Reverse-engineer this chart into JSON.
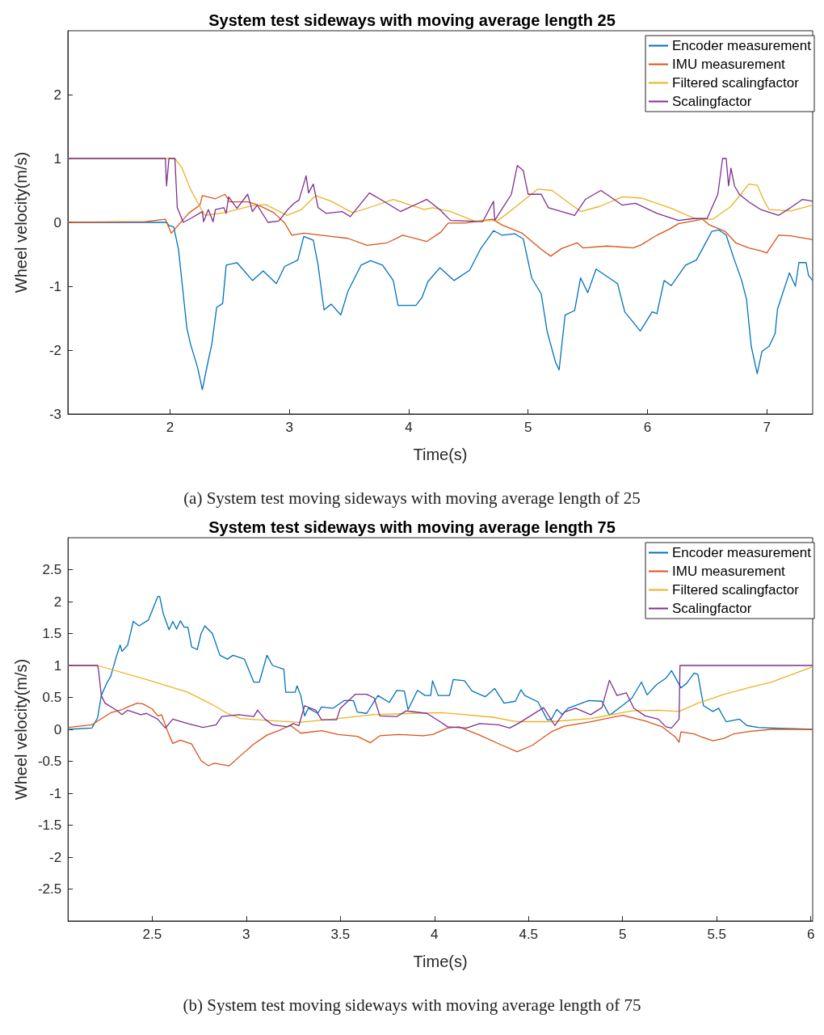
{
  "chart_data": [
    {
      "type": "line",
      "title": "System test sideways with moving average length 25",
      "xlabel": "Time(s)",
      "ylabel": "Wheel velocity(m/s)",
      "xlim": [
        1.143,
        7.385
      ],
      "ylim": [
        -3,
        3
      ],
      "xticks": [
        2,
        3,
        4,
        5,
        6,
        7
      ],
      "yticks": [
        -3,
        -2,
        -1,
        0,
        1,
        2
      ],
      "legend": "top right",
      "annotations": [
        "(a) System test moving sideways with moving average length of 25"
      ],
      "series": [
        {
          "name": "Encoder measurement",
          "color": "#0072bd",
          "x": [
            1.143,
            1.97,
            1.99,
            2.03,
            2.07,
            2.11,
            2.14,
            2.17,
            2.23,
            2.27,
            2.31,
            2.35,
            2.39,
            2.44,
            2.47,
            2.56,
            2.69,
            2.78,
            2.89,
            2.96,
            3.07,
            3.12,
            3.2,
            3.24,
            3.29,
            3.35,
            3.43,
            3.49,
            3.6,
            3.68,
            3.78,
            3.87,
            3.91,
            4.06,
            4.11,
            4.16,
            4.26,
            4.38,
            4.51,
            4.6,
            4.71,
            4.78,
            4.89,
            4.96,
            5.03,
            5.11,
            5.16,
            5.23,
            5.26,
            5.31,
            5.39,
            5.44,
            5.5,
            5.57,
            5.75,
            5.81,
            5.94,
            6.04,
            6.08,
            6.14,
            6.2,
            6.32,
            6.41,
            6.48,
            6.54,
            6.6,
            6.66,
            6.72,
            6.79,
            6.83,
            6.87,
            6.92,
            6.96,
            7.02,
            7.07,
            7.09,
            7.19,
            7.24,
            7.27,
            7.33,
            7.35,
            7.385
          ],
          "values": [
            0,
            0,
            -0.05,
            -0.07,
            -0.42,
            -1.12,
            -1.65,
            -1.9,
            -2.27,
            -2.62,
            -2.25,
            -1.9,
            -1.33,
            -1.27,
            -0.67,
            -0.63,
            -0.91,
            -0.76,
            -0.96,
            -0.69,
            -0.59,
            -0.22,
            -0.28,
            -0.67,
            -1.37,
            -1.28,
            -1.45,
            -1.08,
            -0.67,
            -0.6,
            -0.67,
            -0.91,
            -1.3,
            -1.3,
            -1.18,
            -0.93,
            -0.71,
            -0.91,
            -0.75,
            -0.42,
            -0.13,
            -0.2,
            -0.18,
            -0.26,
            -0.87,
            -1.12,
            -1.71,
            -2.19,
            -2.31,
            -1.45,
            -1.38,
            -0.87,
            -1.1,
            -0.73,
            -0.96,
            -1.4,
            -1.7,
            -1.4,
            -1.43,
            -0.91,
            -0.99,
            -0.67,
            -0.59,
            -0.35,
            -0.14,
            -0.12,
            -0.2,
            -0.54,
            -0.91,
            -1.2,
            -1.94,
            -2.37,
            -2.02,
            -1.94,
            -1.74,
            -1.36,
            -0.79,
            -1.0,
            -0.63,
            -0.63,
            -0.83,
            -0.91
          ]
        },
        {
          "name": "IMU measurement",
          "color": "#d95319",
          "x": [
            1.143,
            1.79,
            1.96,
            2.01,
            2.07,
            2.16,
            2.25,
            2.27,
            2.38,
            2.46,
            2.5,
            2.65,
            2.74,
            2.87,
            2.96,
            3.02,
            3.12,
            3.35,
            3.49,
            3.65,
            3.82,
            3.95,
            4.15,
            4.27,
            4.33,
            4.47,
            4.7,
            4.78,
            4.95,
            5.11,
            5.19,
            5.28,
            5.41,
            5.46,
            5.66,
            5.88,
            5.95,
            6.08,
            6.19,
            6.26,
            6.46,
            6.52,
            6.65,
            6.74,
            6.85,
            6.96,
            7.0,
            7.1,
            7.2,
            7.385
          ],
          "values": [
            0,
            0.01,
            0.05,
            -0.17,
            -0.04,
            0.15,
            0.27,
            0.42,
            0.37,
            0.44,
            0.32,
            0.32,
            0.27,
            0.15,
            -0.01,
            -0.2,
            -0.17,
            -0.22,
            -0.25,
            -0.36,
            -0.32,
            -0.2,
            -0.3,
            -0.15,
            -0.01,
            -0.01,
            0.05,
            -0.04,
            -0.17,
            -0.42,
            -0.53,
            -0.41,
            -0.32,
            -0.4,
            -0.37,
            -0.4,
            -0.35,
            -0.2,
            -0.1,
            -0.02,
            0.05,
            -0.04,
            -0.14,
            -0.32,
            -0.4,
            -0.45,
            -0.48,
            -0.2,
            -0.21,
            -0.27
          ]
        },
        {
          "name": "Filtered scalingfactor",
          "color": "#edb120",
          "x": [
            1.143,
            2.04,
            2.1,
            2.17,
            2.29,
            2.45,
            2.69,
            2.8,
            2.98,
            3.1,
            3.22,
            3.35,
            3.53,
            3.7,
            3.87,
            4.13,
            4.2,
            4.35,
            4.55,
            4.75,
            4.9,
            5.08,
            5.2,
            5.44,
            5.6,
            5.79,
            5.95,
            6.2,
            6.41,
            6.55,
            6.7,
            6.85,
            6.92,
            6.98,
            7.02,
            7.2,
            7.385
          ],
          "values": [
            1,
            1,
            0.85,
            0.52,
            0.11,
            0.15,
            0.26,
            0.28,
            0.11,
            0.2,
            0.42,
            0.33,
            0.15,
            0.25,
            0.36,
            0.2,
            0.23,
            0.17,
            0.02,
            0.03,
            0.25,
            0.52,
            0.5,
            0.17,
            0.25,
            0.4,
            0.38,
            0.22,
            0.05,
            0.05,
            0.25,
            0.6,
            0.58,
            0.33,
            0.2,
            0.18,
            0.27
          ]
        },
        {
          "name": "Scalingfactor",
          "color": "#7e2f8e",
          "x": [
            1.143,
            1.96,
            1.97,
            1.99,
            2.04,
            2.06,
            2.11,
            2.18,
            2.27,
            2.28,
            2.32,
            2.36,
            2.38,
            2.45,
            2.47,
            2.49,
            2.56,
            2.65,
            2.69,
            2.73,
            2.82,
            2.91,
            2.99,
            3.04,
            3.08,
            3.14,
            3.16,
            3.2,
            3.24,
            3.31,
            3.44,
            3.51,
            3.67,
            3.8,
            3.93,
            4.15,
            4.26,
            4.35,
            4.62,
            4.71,
            4.72,
            4.86,
            4.91,
            4.96,
            5.0,
            5.11,
            5.17,
            5.39,
            5.48,
            5.61,
            5.79,
            5.9,
            6.08,
            6.26,
            6.39,
            6.5,
            6.59,
            6.63,
            6.66,
            6.68,
            6.7,
            6.73,
            6.77,
            6.85,
            6.95,
            7.1,
            7.2,
            7.3,
            7.385
          ],
          "values": [
            1,
            1,
            0.57,
            1,
            1,
            0.23,
            0,
            0.07,
            0.17,
            0.01,
            0.2,
            0.01,
            0.2,
            0.23,
            0.14,
            0.4,
            0.22,
            0.44,
            0.17,
            0.27,
            0,
            0.02,
            0.21,
            0.3,
            0.35,
            0.73,
            0.46,
            0.6,
            0.23,
            0.14,
            0.17,
            0.09,
            0.46,
            0.32,
            0.17,
            0.36,
            0.2,
            0.03,
            0.01,
            0.33,
            0.03,
            0.44,
            0.89,
            0.81,
            0.44,
            0.44,
            0.23,
            0.11,
            0.36,
            0.5,
            0.27,
            0.3,
            0.14,
            0.03,
            0.06,
            0.06,
            0.44,
            1,
            1,
            0.57,
            0.85,
            0.57,
            0.44,
            0.32,
            0.2,
            0.11,
            0.23,
            0.36,
            0.33
          ]
        }
      ]
    },
    {
      "type": "line",
      "title": "System test sideways with moving average length 75",
      "xlabel": "Time(s)",
      "ylabel": "Wheel velocity(m/s)",
      "xlim": [
        2.053,
        6.01
      ],
      "ylim": [
        -3,
        3
      ],
      "xticks": [
        2.5,
        3,
        3.5,
        4,
        4.5,
        5,
        5.5,
        6
      ],
      "yticks": [
        -2.5,
        -2,
        -1.5,
        -1,
        -0.5,
        0,
        0.5,
        1,
        1.5,
        2,
        2.5
      ],
      "legend": "top right",
      "annotations": [
        "(b) System test moving sideways with moving average length of 75"
      ],
      "series": [
        {
          "name": "Encoder measurement",
          "color": "#0072bd",
          "x": [
            2.053,
            2.18,
            2.21,
            2.23,
            2.26,
            2.28,
            2.31,
            2.33,
            2.34,
            2.37,
            2.4,
            2.43,
            2.48,
            2.53,
            2.54,
            2.56,
            2.59,
            2.61,
            2.63,
            2.65,
            2.67,
            2.69,
            2.71,
            2.74,
            2.76,
            2.78,
            2.82,
            2.86,
            2.9,
            2.93,
            2.99,
            3.04,
            3.07,
            3.11,
            3.14,
            3.2,
            3.21,
            3.26,
            3.27,
            3.29,
            3.31,
            3.33,
            3.38,
            3.4,
            3.46,
            3.52,
            3.57,
            3.59,
            3.64,
            3.7,
            3.76,
            3.8,
            3.84,
            3.86,
            3.91,
            3.95,
            3.98,
            3.99,
            4.02,
            4.08,
            4.1,
            4.16,
            4.2,
            4.27,
            4.32,
            4.37,
            4.43,
            4.46,
            4.48,
            4.55,
            4.6,
            4.62,
            4.65,
            4.68,
            4.71,
            4.82,
            4.89,
            4.93,
            4.98,
            5.05,
            5.1,
            5.13,
            5.18,
            5.23,
            5.26,
            5.31,
            5.34,
            5.38,
            5.4,
            5.43,
            5.48,
            5.51,
            5.55,
            5.62,
            5.66,
            5.72,
            5.8,
            6.01
          ],
          "values": [
            0,
            0.02,
            0.18,
            0.53,
            0.73,
            0.83,
            1.14,
            1.32,
            1.22,
            1.32,
            1.69,
            1.62,
            1.71,
            2.08,
            2.08,
            1.8,
            1.56,
            1.69,
            1.57,
            1.7,
            1.6,
            1.6,
            1.29,
            1.25,
            1.5,
            1.62,
            1.5,
            1.16,
            1.1,
            1.16,
            1.1,
            0.74,
            0.74,
            1.16,
            1.0,
            0.94,
            0.58,
            0.58,
            0.68,
            0.53,
            0.21,
            0.33,
            0.25,
            0.35,
            0.33,
            0.45,
            0.45,
            0.27,
            0.25,
            0.53,
            0.42,
            0.61,
            0.6,
            0.31,
            0.61,
            0.53,
            0.53,
            0.76,
            0.53,
            0.53,
            0.78,
            0.76,
            0.6,
            0.51,
            0.64,
            0.41,
            0.44,
            0.62,
            0.53,
            0.43,
            0.15,
            0.15,
            0.31,
            0.23,
            0.33,
            0.45,
            0.44,
            0.22,
            0.33,
            0.49,
            0.74,
            0.54,
            0.7,
            0.8,
            0.92,
            0.65,
            0.72,
            0.88,
            0.86,
            0.37,
            0.28,
            0.33,
            0.12,
            0.16,
            0.06,
            0.03,
            0.02,
            0
          ]
        },
        {
          "name": "IMU measurement",
          "color": "#d95319",
          "x": [
            2.053,
            2.18,
            2.21,
            2.28,
            2.34,
            2.37,
            2.42,
            2.45,
            2.5,
            2.53,
            2.55,
            2.59,
            2.61,
            2.65,
            2.71,
            2.76,
            2.8,
            2.83,
            2.91,
            2.97,
            3.04,
            3.11,
            3.18,
            3.23,
            3.24,
            3.29,
            3.4,
            3.49,
            3.59,
            3.66,
            3.71,
            3.81,
            3.94,
            3.99,
            4.07,
            4.13,
            4.24,
            4.36,
            4.44,
            4.52,
            4.62,
            4.69,
            4.83,
            5.0,
            5.12,
            5.21,
            5.28,
            5.3,
            5.31,
            5.38,
            5.42,
            5.48,
            5.54,
            5.59,
            5.68,
            5.79,
            6.01
          ],
          "values": [
            0.03,
            0.07,
            0.13,
            0.26,
            0.31,
            0.35,
            0.41,
            0.4,
            0.32,
            0.21,
            0.23,
            -0.09,
            -0.22,
            -0.17,
            -0.23,
            -0.49,
            -0.57,
            -0.53,
            -0.57,
            -0.41,
            -0.23,
            -0.09,
            -0.01,
            0.06,
            0.05,
            -0.06,
            -0.02,
            -0.08,
            -0.11,
            -0.21,
            -0.1,
            -0.08,
            -0.1,
            -0.08,
            0.02,
            0.04,
            -0.09,
            -0.25,
            -0.35,
            -0.25,
            -0.04,
            0.05,
            0.12,
            0.22,
            0.13,
            0.04,
            -0.12,
            -0.2,
            -0.04,
            -0.07,
            -0.12,
            -0.18,
            -0.14,
            -0.07,
            -0.03,
            0,
            0
          ]
        },
        {
          "name": "Filtered scalingfactor",
          "color": "#edb120",
          "x": [
            2.053,
            2.21,
            2.47,
            2.69,
            2.83,
            2.9,
            2.97,
            3.11,
            3.28,
            3.46,
            3.67,
            3.88,
            4.04,
            4.13,
            4.31,
            4.44,
            4.62,
            4.83,
            5.05,
            5.19,
            5.3,
            5.4,
            5.54,
            5.68,
            5.79,
            6.01
          ],
          "values": [
            1,
            1,
            0.78,
            0.58,
            0.37,
            0.25,
            0.17,
            0.14,
            0.11,
            0.16,
            0.23,
            0.25,
            0.26,
            0.24,
            0.19,
            0.12,
            0.12,
            0.17,
            0.29,
            0.3,
            0.28,
            0.41,
            0.55,
            0.66,
            0.74,
            0.98
          ]
        },
        {
          "name": "Scalingfactor",
          "color": "#7e2f8e",
          "x": [
            2.053,
            2.21,
            2.215,
            2.23,
            2.25,
            2.31,
            2.34,
            2.37,
            2.44,
            2.47,
            2.53,
            2.57,
            2.61,
            2.69,
            2.77,
            2.84,
            2.87,
            2.96,
            3.04,
            3.06,
            3.1,
            3.14,
            3.22,
            3.25,
            3.28,
            3.31,
            3.37,
            3.4,
            3.48,
            3.5,
            3.58,
            3.64,
            3.68,
            3.71,
            3.8,
            3.85,
            3.96,
            4.03,
            4.07,
            4.17,
            4.24,
            4.34,
            4.4,
            4.45,
            4.51,
            4.58,
            4.64,
            4.69,
            4.75,
            4.83,
            4.89,
            4.93,
            4.97,
            5.02,
            5.06,
            5.12,
            5.19,
            5.23,
            5.26,
            5.3,
            5.305,
            6.01
          ],
          "values": [
            1,
            1,
            0.93,
            0.53,
            0.41,
            0.3,
            0.23,
            0.3,
            0.23,
            0.25,
            0.16,
            0.02,
            0.16,
            0.09,
            0.03,
            0.07,
            0.2,
            0.23,
            0.2,
            0.3,
            0.16,
            0.07,
            0.04,
            0.09,
            0.06,
            0.37,
            0.3,
            0.15,
            0.15,
            0.33,
            0.55,
            0.55,
            0.49,
            0.21,
            0.2,
            0.29,
            0.25,
            0.12,
            0.04,
            0.02,
            0.09,
            0.07,
            0.02,
            0.1,
            0.21,
            0.34,
            0.06,
            0.27,
            0.33,
            0.23,
            0.34,
            0.77,
            0.53,
            0.57,
            0.33,
            0.21,
            0.16,
            0.04,
            0.02,
            0.16,
            1,
            1
          ]
        }
      ]
    }
  ]
}
